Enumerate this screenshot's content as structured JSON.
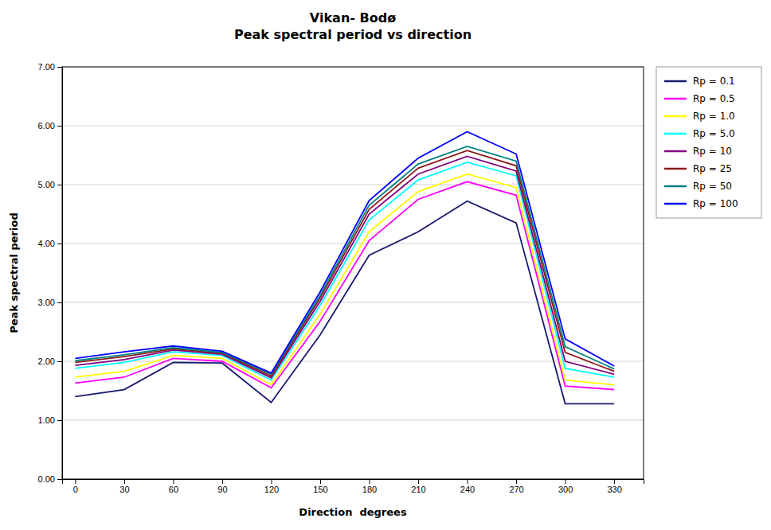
{
  "chart_data": {
    "type": "line",
    "title": "Vikan- Bodø\nPeak spectral period vs direction",
    "x_label": "Direction  degrees",
    "y_label": "Peak spectral period",
    "x": [
      0,
      30,
      60,
      90,
      120,
      150,
      180,
      210,
      240,
      270,
      300,
      330
    ],
    "xlim": [
      -8,
      348
    ],
    "xticks": [
      0,
      30,
      60,
      90,
      120,
      150,
      180,
      210,
      240,
      270,
      300,
      330
    ],
    "ylim": [
      0.0,
      7.0
    ],
    "yticks": [
      {
        "value": 0.0,
        "label": "0.00"
      },
      {
        "value": 1.0,
        "label": "1.00"
      },
      {
        "value": 2.0,
        "label": "2.00"
      },
      {
        "value": 3.0,
        "label": "3.00"
      },
      {
        "value": 4.0,
        "label": "4.00"
      },
      {
        "value": 5.0,
        "label": "5.00"
      },
      {
        "value": 6.0,
        "label": "6.00"
      },
      {
        "value": 7.0,
        "label": "7.00"
      }
    ],
    "grid": true,
    "legend": "right",
    "series": [
      {
        "name": "Rp = 0.1",
        "color": "#191970",
        "values": [
          1.4,
          1.52,
          1.98,
          1.97,
          1.3,
          2.45,
          3.8,
          4.2,
          4.72,
          4.35,
          1.28,
          1.28
        ]
      },
      {
        "name": "Rp = 0.5",
        "color": "#FF00FF",
        "values": [
          1.63,
          1.73,
          2.05,
          2.0,
          1.55,
          2.68,
          4.05,
          4.75,
          5.05,
          4.82,
          1.58,
          1.52
        ]
      },
      {
        "name": "Rp = 1.0",
        "color": "#FFFF00",
        "values": [
          1.73,
          1.83,
          2.1,
          2.05,
          1.6,
          2.8,
          4.2,
          4.88,
          5.18,
          4.95,
          1.68,
          1.6
        ]
      },
      {
        "name": "Rp = 5.0",
        "color": "#00FFFF",
        "values": [
          1.88,
          1.98,
          2.16,
          2.1,
          1.68,
          2.95,
          4.4,
          5.08,
          5.38,
          5.15,
          1.88,
          1.73
        ]
      },
      {
        "name": "Rp = 10",
        "color": "#800080",
        "values": [
          1.93,
          2.03,
          2.19,
          2.12,
          1.72,
          3.02,
          4.5,
          5.18,
          5.48,
          5.23,
          2.0,
          1.78
        ]
      },
      {
        "name": "Rp = 25",
        "color": "#8B1A1A",
        "values": [
          1.98,
          2.08,
          2.21,
          2.14,
          1.75,
          3.08,
          4.58,
          5.28,
          5.58,
          5.32,
          2.15,
          1.83
        ]
      },
      {
        "name": "Rp = 50",
        "color": "#008080",
        "values": [
          2.01,
          2.11,
          2.23,
          2.15,
          1.78,
          3.12,
          4.65,
          5.35,
          5.65,
          5.4,
          2.25,
          1.87
        ]
      },
      {
        "name": "Rp = 100",
        "color": "#0000FF",
        "values": [
          2.05,
          2.16,
          2.26,
          2.17,
          1.8,
          3.18,
          4.73,
          5.45,
          5.9,
          5.52,
          2.38,
          1.92
        ]
      }
    ]
  }
}
